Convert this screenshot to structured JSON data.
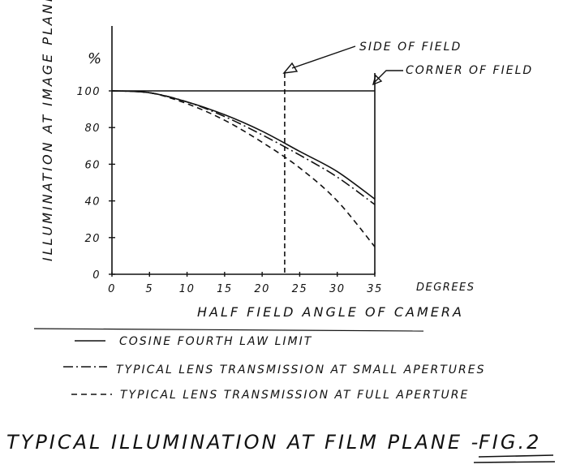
{
  "chart_data": {
    "type": "line",
    "title": "TYPICAL ILLUMINATION AT FILM PLANE -",
    "figure_label": "FIG.2",
    "xlabel": "HALF FIELD ANGLE OF CAMERA",
    "x_unit": "DEGREES",
    "ylabel": "ILLUMINATION AT IMAGE PLANE",
    "y_unit": "%",
    "xlim": [
      0,
      35
    ],
    "ylim": [
      0,
      100
    ],
    "x_ticks": [
      "0",
      "5",
      "10",
      "15",
      "20",
      "25",
      "30",
      "35"
    ],
    "y_ticks": [
      "0",
      "20",
      "40",
      "60",
      "80",
      "100"
    ],
    "grid": false,
    "legend_position": "below",
    "x": [
      0,
      5,
      10,
      15,
      20,
      25,
      30,
      35
    ],
    "series": [
      {
        "name": "COSINE FOURTH LAW LIMIT",
        "style": "solid",
        "values": [
          100,
          99,
          94,
          87,
          78,
          67,
          56,
          41
        ]
      },
      {
        "name": "TYPICAL LENS TRANSMISSION AT SMALL APERTURES",
        "style": "dashdot",
        "values": [
          100,
          99,
          94,
          86,
          76,
          65,
          53,
          38
        ]
      },
      {
        "name": "TYPICAL LENS TRANSMISSION AT FULL APERTURE",
        "style": "dashed",
        "values": [
          100,
          99,
          93,
          84,
          72,
          58,
          40,
          15
        ]
      }
    ],
    "reference_lines": [
      {
        "type": "horizontal",
        "y": 100
      },
      {
        "type": "vertical",
        "x": 23,
        "style": "dashed",
        "label": "SIDE OF FIELD"
      },
      {
        "type": "vertical",
        "x": 35,
        "style": "solid",
        "label": "CORNER OF FIELD"
      }
    ]
  }
}
